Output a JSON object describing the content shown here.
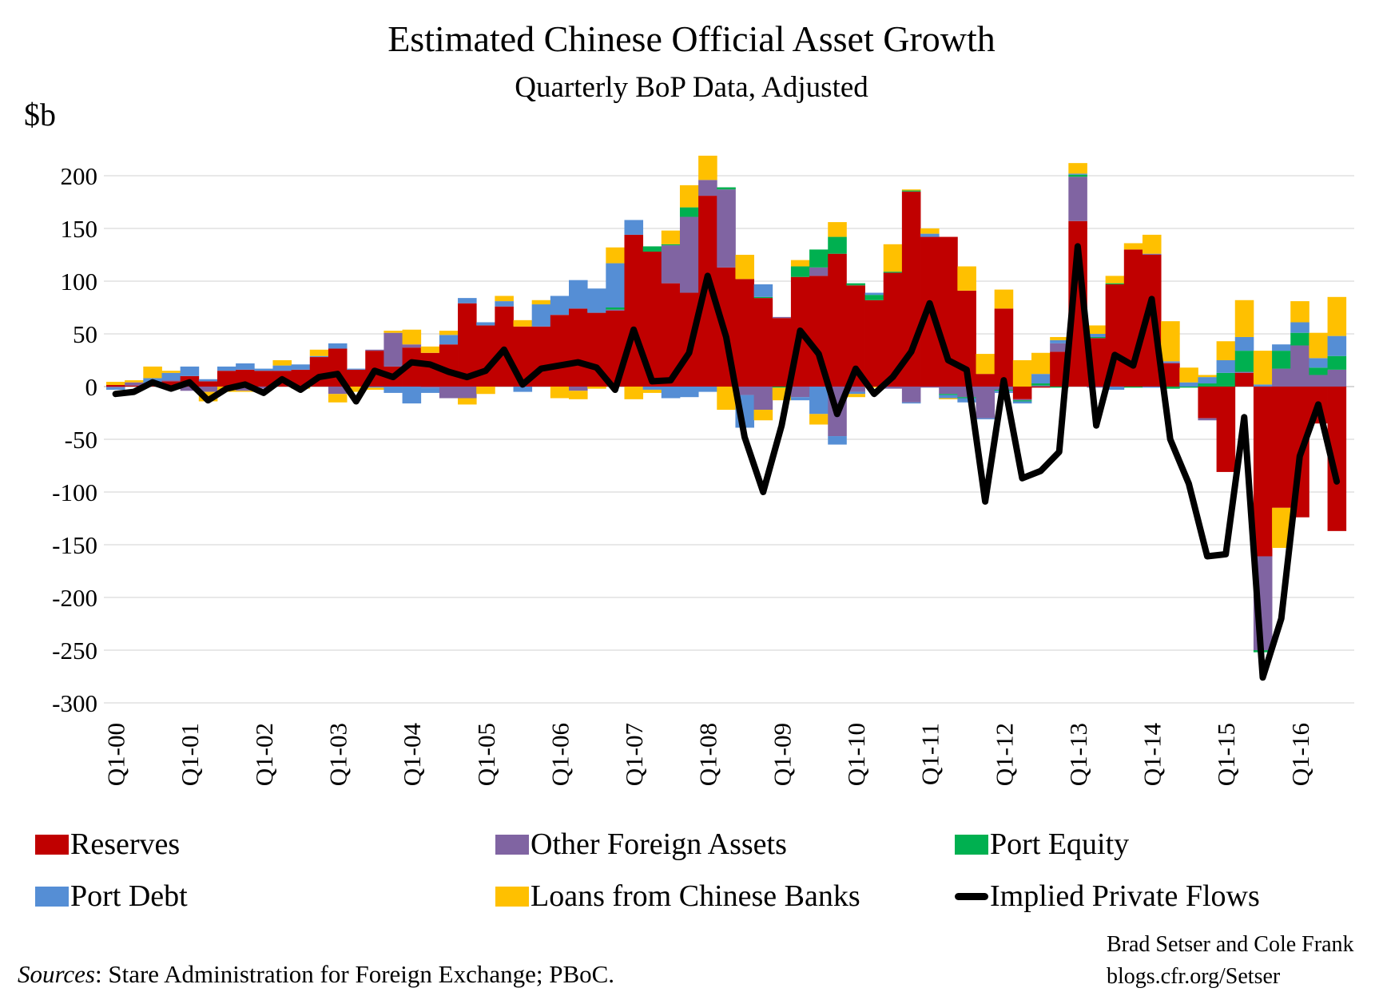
{
  "chart_data": {
    "type": "bar",
    "stacked": true,
    "title": "Estimated Chinese Official Asset Growth",
    "subtitle": "Quarterly BoP Data, Adjusted",
    "ylabel": "$b",
    "ylim": [
      -300,
      220
    ],
    "yticks": [
      200,
      150,
      100,
      50,
      0,
      -50,
      -100,
      -150,
      -200,
      -250,
      -300
    ],
    "ytick_labels": [
      "200",
      "150",
      "100",
      "50",
      "0",
      "-50",
      "-100",
      "-150",
      "-200",
      "-250",
      "-300"
    ],
    "grid": true,
    "legend_position": "bottom",
    "categories": [
      "Q1-00",
      "Q2-00",
      "Q3-00",
      "Q4-00",
      "Q1-01",
      "Q2-01",
      "Q3-01",
      "Q4-01",
      "Q1-02",
      "Q2-02",
      "Q3-02",
      "Q4-02",
      "Q1-03",
      "Q2-03",
      "Q3-03",
      "Q4-03",
      "Q1-04",
      "Q2-04",
      "Q3-04",
      "Q4-04",
      "Q1-05",
      "Q2-05",
      "Q3-05",
      "Q4-05",
      "Q1-06",
      "Q2-06",
      "Q3-06",
      "Q4-06",
      "Q1-07",
      "Q2-07",
      "Q3-07",
      "Q4-07",
      "Q1-08",
      "Q2-08",
      "Q3-08",
      "Q4-08",
      "Q1-09",
      "Q2-09",
      "Q3-09",
      "Q4-09",
      "Q1-10",
      "Q2-10",
      "Q3-10",
      "Q4-10",
      "Q1-11",
      "Q2-11",
      "Q3-11",
      "Q4-11",
      "Q1-12",
      "Q2-12",
      "Q3-12",
      "Q4-12",
      "Q1-13",
      "Q2-13",
      "Q3-13",
      "Q4-13",
      "Q1-14",
      "Q2-14",
      "Q3-14",
      "Q4-14",
      "Q1-15",
      "Q2-15",
      "Q3-15",
      "Q4-15",
      "Q1-16",
      "Q2-16",
      "Q3-16"
    ],
    "xtick_labels": [
      "Q1-00",
      "Q1-01",
      "Q1-02",
      "Q1-03",
      "Q1-04",
      "Q1-05",
      "Q1-06",
      "Q1-07",
      "Q1-08",
      "Q1-09",
      "Q1-10",
      "Q1-11",
      "Q1-12",
      "Q1-13",
      "Q1-14",
      "Q1-15",
      "Q1-16"
    ],
    "series": [
      {
        "name": "Reserves",
        "kind": "bar",
        "color": "#C00000",
        "values": [
          1.5,
          1,
          1,
          5,
          10,
          5,
          15,
          16,
          15,
          15,
          16,
          28,
          36,
          16,
          34,
          19,
          37,
          32,
          40,
          79,
          58,
          76,
          57,
          57,
          68,
          74,
          70,
          72,
          144,
          128,
          98,
          89,
          181,
          113,
          102,
          84,
          65,
          104,
          105,
          126,
          96,
          82,
          108,
          185,
          142,
          142,
          91,
          12,
          74,
          -12,
          -1,
          33,
          157,
          46,
          97,
          130,
          125,
          22,
          0,
          -30,
          -81,
          13,
          -161,
          -115,
          -124,
          -35,
          -137
        ]
      },
      {
        "name": "Other Foreign Assets",
        "kind": "bar",
        "color": "#8064A2",
        "values": [
          -1,
          3,
          0,
          1,
          -4,
          -5,
          0,
          -4,
          -2,
          0,
          0,
          0,
          -7,
          0,
          1,
          32,
          3,
          -1,
          -11,
          -11,
          0,
          0,
          0,
          0,
          0,
          -4,
          0,
          1,
          0,
          0,
          36,
          72,
          15,
          74,
          -8,
          -22,
          1,
          -10,
          8,
          -47,
          -5,
          0,
          -2,
          -15,
          -1,
          -7,
          -10,
          -30,
          -3,
          -1,
          1,
          8,
          42,
          -1,
          0,
          0,
          1,
          1,
          0,
          -2,
          0,
          1,
          -89,
          17,
          39,
          11,
          16
        ]
      },
      {
        "name": "Port Equity",
        "kind": "bar",
        "color": "#00B050",
        "values": [
          0,
          0,
          0,
          0,
          0,
          0,
          0,
          0,
          0,
          0,
          0,
          0,
          0,
          0,
          0,
          0,
          0,
          0,
          0,
          0,
          0,
          0,
          0,
          0,
          0,
          0,
          0,
          2,
          0,
          5,
          1,
          9,
          0,
          2,
          0,
          1,
          -1,
          10,
          17,
          16,
          2,
          5,
          1,
          1,
          0,
          -1,
          -1,
          0,
          -1,
          -1,
          2,
          -1,
          2,
          1,
          1,
          -1,
          0,
          -2,
          -1,
          3,
          13,
          20,
          -2,
          17,
          12,
          7,
          13
        ]
      },
      {
        "name": "Port Debt",
        "kind": "bar",
        "color": "#558ED5",
        "values": [
          -2,
          0,
          7,
          7,
          9,
          2,
          4,
          6,
          2,
          5,
          5,
          1,
          5,
          1,
          -1,
          -6,
          -16,
          -5,
          9,
          5,
          3,
          5,
          -5,
          21,
          18,
          27,
          23,
          42,
          14,
          -3,
          -11,
          -10,
          -5,
          0,
          -31,
          12,
          0,
          -3,
          -26,
          -8,
          -2,
          2,
          0,
          -1,
          3,
          -3,
          -4,
          -1,
          -2,
          -2,
          9,
          3,
          1,
          3,
          -3,
          0,
          -1,
          1,
          4,
          6,
          12,
          13,
          2,
          6,
          10,
          9,
          19
        ]
      },
      {
        "name": "Loans from Chinese Banks",
        "kind": "bar",
        "color": "#FFC000",
        "values": [
          3,
          2,
          11,
          2,
          0,
          -9,
          -5,
          -1,
          0,
          5,
          -2,
          6,
          -8,
          -5,
          -2,
          2,
          14,
          6,
          4,
          -6,
          -7,
          5,
          6,
          4,
          -11,
          -8,
          -2,
          15,
          -12,
          -3,
          13,
          21,
          23,
          -22,
          23,
          -10,
          -12,
          6,
          -10,
          14,
          -3,
          -1,
          26,
          1,
          5,
          -1,
          23,
          19,
          18,
          25,
          20,
          3,
          10,
          8,
          7,
          6,
          18,
          38,
          14,
          2,
          18,
          35,
          32,
          -38,
          20,
          24,
          37
        ]
      },
      {
        "name": "Implied Private Flows",
        "kind": "line",
        "color": "#000000",
        "values": [
          -7,
          -5,
          4,
          -2,
          4,
          -13,
          -2,
          2,
          -6,
          7,
          -3,
          9,
          12,
          -14,
          15,
          9,
          23,
          21,
          14,
          9,
          15,
          35,
          2,
          17,
          20,
          23,
          18,
          -3,
          54,
          5,
          6,
          32,
          105,
          47,
          -48,
          -100,
          -37,
          53,
          31,
          -26,
          17,
          -7,
          9,
          33,
          79,
          25,
          16,
          -109,
          6,
          -87,
          -80,
          -62,
          133,
          -37,
          30,
          20,
          83,
          -50,
          -92,
          -161,
          -159,
          -29,
          -276,
          -220,
          -66,
          -17,
          -90
        ]
      }
    ]
  },
  "sources": {
    "label": "Sources",
    "text": ": Stare Administration for Foreign Exchange; PBoC."
  },
  "credit": {
    "line1": "Brad Setser and Cole Frank",
    "line2": "blogs.cfr.org/Setser"
  }
}
